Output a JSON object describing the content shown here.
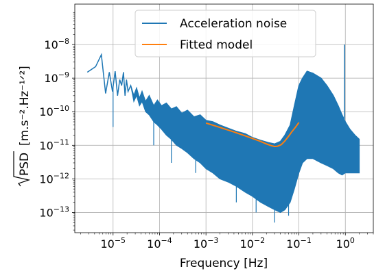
{
  "chart_data": {
    "type": "line",
    "title": "",
    "xlabel": "Frequency [Hz]",
    "ylabel_radicand": "PSD",
    "ylabel_units": "[m.s⁻².Hz⁻¹ᐟ²]",
    "xscale": "log",
    "yscale": "log",
    "xlim": [
      1.5e-06,
      4.0
    ],
    "ylim": [
      2.5e-14,
      1.6e-07
    ],
    "grid": true,
    "legend_position": "top-center",
    "x_ticks": [
      {
        "value": 1e-05,
        "base": "10",
        "exp": "−5"
      },
      {
        "value": 0.0001,
        "base": "10",
        "exp": "−4"
      },
      {
        "value": 0.001,
        "base": "10",
        "exp": "−3"
      },
      {
        "value": 0.01,
        "base": "10",
        "exp": "−2"
      },
      {
        "value": 0.1,
        "base": "10",
        "exp": "−1"
      },
      {
        "value": 1,
        "base": "10",
        "exp": "0"
      }
    ],
    "y_ticks": [
      {
        "value": 1e-13,
        "base": "10",
        "exp": "−13"
      },
      {
        "value": 1e-12,
        "base": "10",
        "exp": "−12"
      },
      {
        "value": 1e-11,
        "base": "10",
        "exp": "−11"
      },
      {
        "value": 1e-10,
        "base": "10",
        "exp": "−10"
      },
      {
        "value": 1e-09,
        "base": "10",
        "exp": "−9"
      },
      {
        "value": 1e-08,
        "base": "10",
        "exp": "−8"
      }
    ],
    "series": [
      {
        "name": "Acceleration noise",
        "color": "#1f77b4",
        "x": [
          2.8e-06,
          4.2e-06,
          5.6e-06,
          6.9e-06,
          8.3e-06,
          9.7e-06,
          1.11e-05,
          1.25e-05,
          1.39e-05,
          1.53e-05,
          1.67e-05,
          1.81e-05,
          1.94e-05,
          2.1e-05,
          2.4e-05,
          2.8e-05,
          3.2e-05,
          3.7e-05,
          4.2e-05,
          5e-05,
          6e-05,
          7.5e-05,
          9e-05,
          0.00011,
          0.00014,
          0.00018,
          0.00023,
          0.0003,
          0.0004,
          0.00055,
          0.00075,
          0.001,
          0.0014,
          0.002,
          0.003,
          0.0045,
          0.007,
          0.01,
          0.015,
          0.022,
          0.03,
          0.04,
          0.05,
          0.065,
          0.08,
          0.1,
          0.12,
          0.15,
          0.2,
          0.3,
          0.4,
          0.55,
          0.7,
          0.85,
          1.0,
          1.25,
          1.6,
          2.0
        ],
        "y": [
          1.5e-09,
          2.2e-09,
          5e-09,
          3.5e-10,
          1.5e-09,
          4e-10,
          1.6e-09,
          3e-10,
          9e-10,
          6e-10,
          1.5e-09,
          3e-10,
          9e-10,
          4e-10,
          6e-10,
          3e-10,
          5e-10,
          2.5e-10,
          4e-10,
          2e-10,
          3e-10,
          1.5e-10,
          2.2e-10,
          1.5e-10,
          1.8e-10,
          1.2e-10,
          1.4e-10,
          9e-11,
          1.1e-10,
          7e-11,
          8e-11,
          5.5e-11,
          5e-11,
          4e-11,
          3.2e-11,
          2.6e-11,
          2.2e-11,
          1.7e-11,
          1.4e-11,
          1.2e-11,
          1.1e-11,
          1.3e-11,
          2e-11,
          4e-11,
          1.5e-10,
          6e-10,
          1e-09,
          1.6e-09,
          1.4e-09,
          1e-09,
          6e-10,
          3e-10,
          1.5e-10,
          8e-11,
          5e-11,
          3e-11,
          2e-11,
          1.5e-11
        ],
        "band_low": [
          1.5e-09,
          2.2e-09,
          5e-09,
          3.5e-10,
          1.5e-09,
          4e-10,
          1.6e-09,
          3e-10,
          9e-10,
          6e-10,
          1.5e-09,
          3e-10,
          9e-10,
          4e-10,
          6e-10,
          2e-10,
          3e-10,
          1.5e-10,
          2e-10,
          1e-10,
          8e-11,
          5e-11,
          4e-11,
          3e-11,
          2e-11,
          1.5e-11,
          1e-11,
          8e-12,
          6e-12,
          4e-12,
          3e-12,
          2e-12,
          1.5e-12,
          1e-12,
          8e-13,
          6e-13,
          4e-13,
          3e-13,
          2e-13,
          1.5e-13,
          1.2e-13,
          1e-13,
          1.2e-13,
          2e-13,
          5e-13,
          1.5e-12,
          3e-12,
          4e-12,
          4e-12,
          3e-12,
          2.5e-12,
          2e-12,
          1.5e-12,
          1.3e-12,
          1.5e-12,
          1.5e-12,
          1.5e-12,
          1.5e-12
        ],
        "spikes": [
          {
            "x": 1e-05,
            "low": 3.5e-11
          },
          {
            "x": 7.5e-05,
            "low": 1e-11
          },
          {
            "x": 0.00018,
            "low": 3e-12
          },
          {
            "x": 0.0006,
            "low": 1.5e-12
          },
          {
            "x": 0.0045,
            "low": 2e-13
          },
          {
            "x": 0.012,
            "low": 1e-13
          },
          {
            "x": 0.03,
            "low": 5e-14
          },
          {
            "x": 0.06,
            "low": 8e-14
          },
          {
            "x": 0.95,
            "high": 1e-08
          }
        ]
      },
      {
        "name": "Fitted model",
        "color": "#ff7f0e",
        "x": [
          0.001,
          0.002,
          0.004,
          0.007,
          0.01,
          0.015,
          0.02,
          0.025,
          0.03,
          0.035,
          0.042,
          0.05,
          0.06,
          0.07,
          0.085,
          0.1
        ],
        "y": [
          4.6e-11,
          3.4e-11,
          2.5e-11,
          1.9e-11,
          1.6e-11,
          1.3e-11,
          1.1e-11,
          9.8e-12,
          9.2e-12,
          9.4e-12,
          1.05e-11,
          1.35e-11,
          1.85e-11,
          2.5e-11,
          3.5e-11,
          4.8e-11
        ]
      }
    ]
  }
}
